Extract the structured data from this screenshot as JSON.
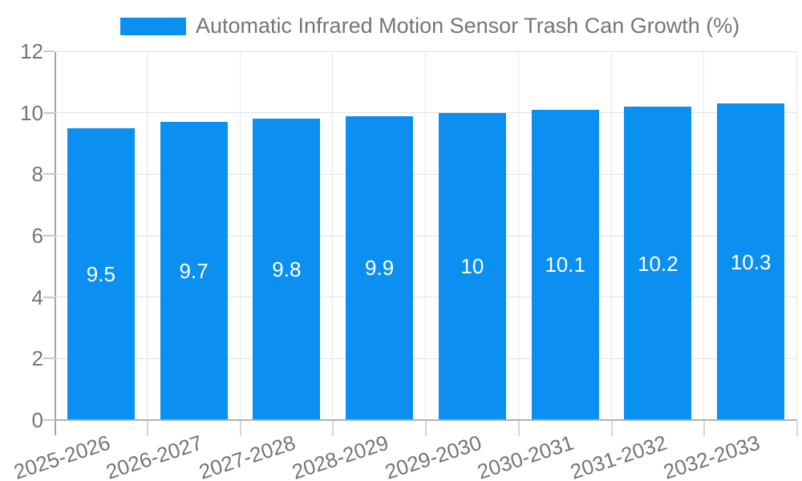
{
  "legend": {
    "label": "Automatic Infrared Motion Sensor Trash Can Growth (%)"
  },
  "chart_data": {
    "type": "bar",
    "title": "Automatic Infrared Motion Sensor Trash Can Growth (%)",
    "categories": [
      "2025-2026",
      "2026-2027",
      "2027-2028",
      "2028-2029",
      "2029-2030",
      "2030-2031",
      "2031-2032",
      "2032-2033"
    ],
    "values": [
      9.5,
      9.7,
      9.8,
      9.9,
      10,
      10.1,
      10.2,
      10.3
    ],
    "value_labels": [
      "9.5",
      "9.7",
      "9.8",
      "9.9",
      "10",
      "10.1",
      "10.2",
      "10.3"
    ],
    "xlabel": "",
    "ylabel": "",
    "ylim": [
      0,
      12
    ],
    "yticks": [
      0,
      2,
      4,
      6,
      8,
      10,
      12
    ],
    "grid": true,
    "legend_position": "top",
    "bar_color": "#0b90f1",
    "value_label_color": "#ffffff",
    "axis_text_color": "#757575"
  }
}
